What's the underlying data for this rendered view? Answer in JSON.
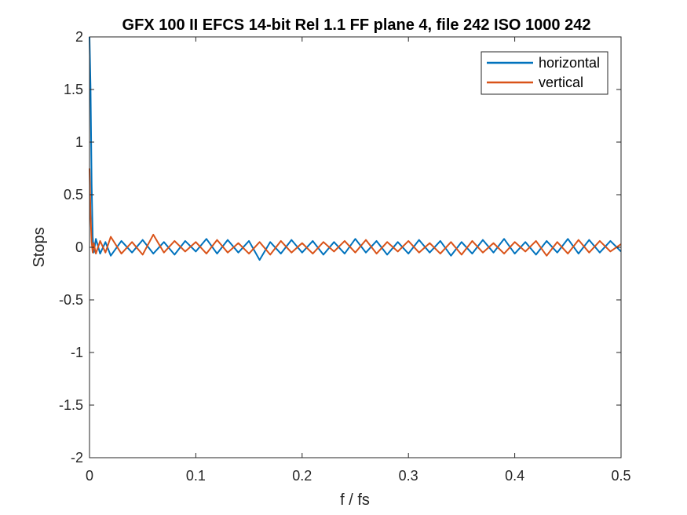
{
  "chart_data": {
    "type": "line",
    "title": "GFX 100 II EFCS 14-bit Rel 1.1 FF plane 4, file 242 ISO 1000 242",
    "xlabel": "f / fs",
    "ylabel": "Stops",
    "xlim": [
      0,
      0.5
    ],
    "ylim": [
      -2,
      2
    ],
    "x_ticks": [
      "0",
      "0.1",
      "0.2",
      "0.3",
      "0.4",
      "0.5"
    ],
    "y_ticks": [
      "2",
      "1.5",
      "1",
      "0.5",
      "0",
      "-0.5",
      "-1",
      "-1.5",
      "-2"
    ],
    "grid": false,
    "legend_position": "top-right",
    "series": [
      {
        "name": "horizontal",
        "color": "#0072BD",
        "x": [
          0,
          0.001,
          0.002,
          0.003,
          0.004,
          0.006,
          0.01,
          0.015,
          0.02,
          0.03,
          0.04,
          0.05,
          0.06,
          0.07,
          0.08,
          0.09,
          0.1,
          0.11,
          0.12,
          0.13,
          0.14,
          0.15,
          0.16,
          0.17,
          0.18,
          0.19,
          0.2,
          0.21,
          0.22,
          0.23,
          0.24,
          0.25,
          0.26,
          0.27,
          0.28,
          0.29,
          0.3,
          0.31,
          0.32,
          0.33,
          0.34,
          0.35,
          0.36,
          0.37,
          0.38,
          0.39,
          0.4,
          0.41,
          0.42,
          0.43,
          0.44,
          0.45,
          0.46,
          0.47,
          0.48,
          0.49,
          0.5
        ],
        "y": [
          2.0,
          1.5,
          0.6,
          0.1,
          -0.05,
          0.08,
          -0.06,
          0.05,
          -0.08,
          0.06,
          -0.05,
          0.07,
          -0.06,
          0.05,
          -0.07,
          0.06,
          -0.04,
          0.08,
          -0.06,
          0.07,
          -0.05,
          0.06,
          -0.12,
          0.05,
          -0.06,
          0.07,
          -0.05,
          0.06,
          -0.07,
          0.05,
          -0.06,
          0.08,
          -0.05,
          0.06,
          -0.07,
          0.05,
          -0.06,
          0.07,
          -0.05,
          0.06,
          -0.08,
          0.05,
          -0.06,
          0.07,
          -0.05,
          0.08,
          -0.06,
          0.05,
          -0.07,
          0.06,
          -0.05,
          0.08,
          -0.06,
          0.07,
          -0.05,
          0.06,
          -0.04
        ]
      },
      {
        "name": "vertical",
        "color": "#D95319",
        "x": [
          0,
          0.001,
          0.002,
          0.003,
          0.004,
          0.006,
          0.01,
          0.015,
          0.02,
          0.03,
          0.04,
          0.05,
          0.06,
          0.07,
          0.08,
          0.09,
          0.1,
          0.11,
          0.12,
          0.13,
          0.14,
          0.15,
          0.16,
          0.17,
          0.18,
          0.19,
          0.2,
          0.21,
          0.22,
          0.23,
          0.24,
          0.25,
          0.26,
          0.27,
          0.28,
          0.29,
          0.3,
          0.31,
          0.32,
          0.33,
          0.34,
          0.35,
          0.36,
          0.37,
          0.38,
          0.39,
          0.4,
          0.41,
          0.42,
          0.43,
          0.44,
          0.45,
          0.46,
          0.47,
          0.48,
          0.49,
          0.5
        ],
        "y": [
          0.75,
          0.3,
          0.05,
          -0.05,
          0.04,
          -0.06,
          0.06,
          -0.05,
          0.1,
          -0.06,
          0.05,
          -0.07,
          0.12,
          -0.05,
          0.06,
          -0.04,
          0.05,
          -0.06,
          0.07,
          -0.05,
          0.04,
          -0.06,
          0.05,
          -0.07,
          0.06,
          -0.05,
          0.04,
          -0.06,
          0.05,
          -0.04,
          0.06,
          -0.05,
          0.07,
          -0.06,
          0.05,
          -0.04,
          0.06,
          -0.05,
          0.04,
          -0.06,
          0.05,
          -0.07,
          0.06,
          -0.05,
          0.04,
          -0.06,
          0.05,
          -0.04,
          0.06,
          -0.08,
          0.05,
          -0.06,
          0.07,
          -0.05,
          0.06,
          -0.04,
          0.03
        ]
      }
    ]
  }
}
